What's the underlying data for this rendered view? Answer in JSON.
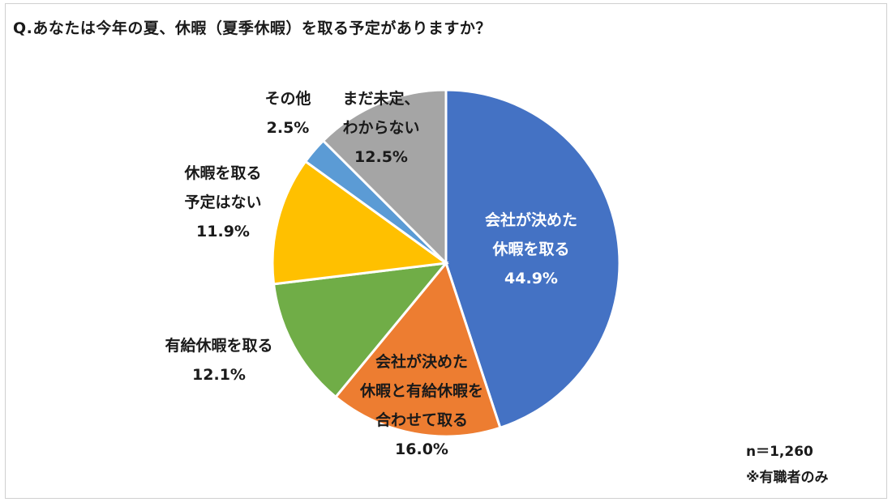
{
  "title": "Q.あなたは今年の夏、休暇（夏季休暇）を取る予定がありますか？",
  "notes": {
    "n": "n＝1,260",
    "scope": "※有職者のみ"
  },
  "chart_data": {
    "type": "pie",
    "title": "Q.あなたは今年の夏、休暇（夏季休暇）を取る予定がありますか？",
    "slices": [
      {
        "label_lines": [
          "会社が決めた",
          "休暇を取る"
        ],
        "value": 44.9,
        "value_label": "44.9%",
        "color": "#4472C4"
      },
      {
        "label_lines": [
          "会社が決めた",
          "休暇と有給休暇を",
          "合わせて取る"
        ],
        "value": 16.0,
        "value_label": "16.0%",
        "color": "#ED7D31"
      },
      {
        "label_lines": [
          "有給休暇を取る"
        ],
        "value": 12.1,
        "value_label": "12.1%",
        "color": "#70AD47"
      },
      {
        "label_lines": [
          "休暇を取る",
          "予定はない"
        ],
        "value": 11.9,
        "value_label": "11.9%",
        "color": "#FFC000"
      },
      {
        "label_lines": [
          "その他"
        ],
        "value": 2.5,
        "value_label": "2.5%",
        "color": "#5B9BD5"
      },
      {
        "label_lines": [
          "まだ未定、",
          "わからない"
        ],
        "value": 12.5,
        "value_label": "12.5%",
        "color": "#A5A5A5"
      }
    ],
    "start_angle": "12 o'clock",
    "direction": "clockwise",
    "legend": "none"
  }
}
